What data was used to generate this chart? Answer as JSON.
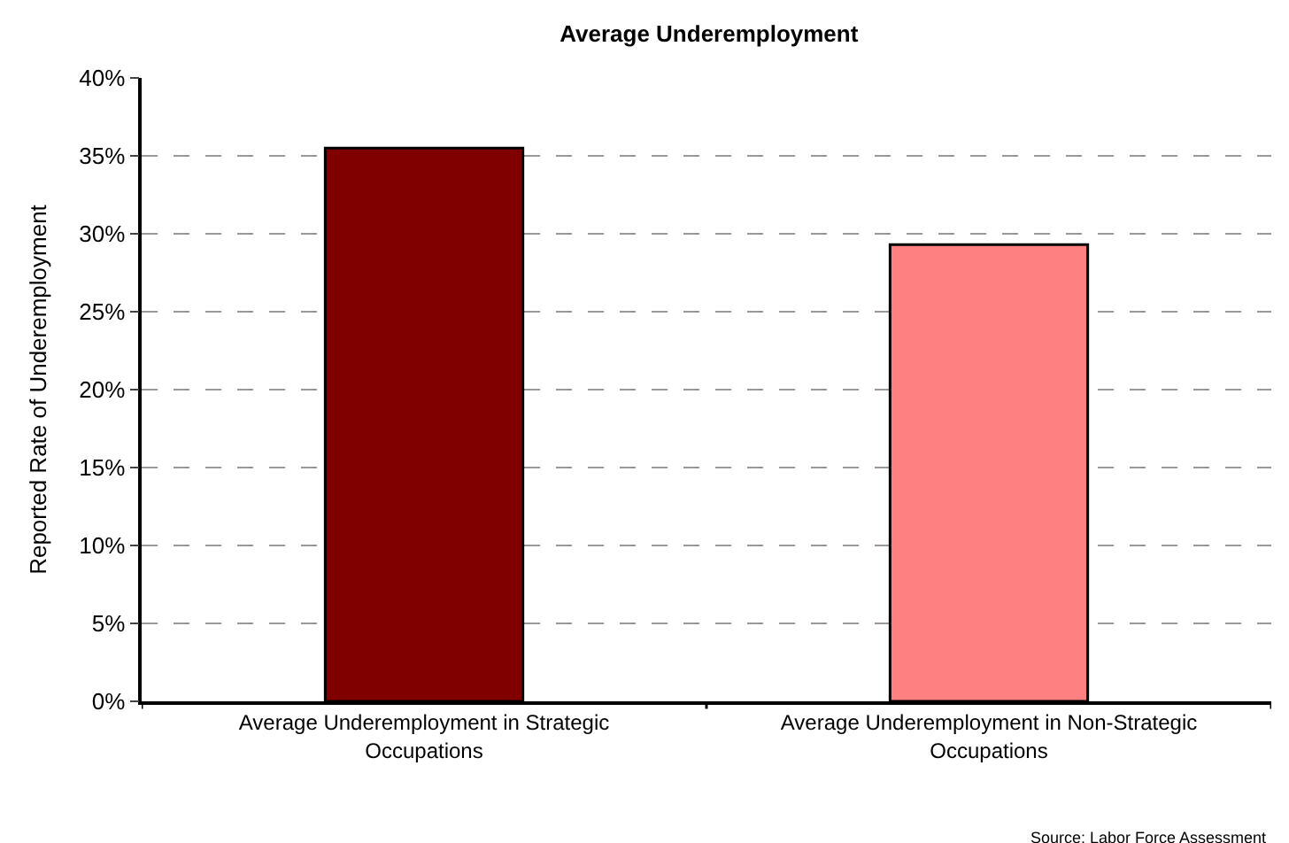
{
  "chart_data": {
    "type": "bar",
    "title": "Average Underemployment",
    "ylabel": "Reported Rate of Underemployment",
    "categories": [
      "Average Underemployment in Strategic Occupations",
      "Average Underemployment in Non-Strategic Occupations"
    ],
    "values": [
      35.5,
      29.3
    ],
    "colors": [
      "#800000",
      "#ff8080"
    ],
    "ylim": [
      0,
      40
    ],
    "yticks": [
      {
        "value": 0,
        "label": "0%"
      },
      {
        "value": 5,
        "label": "5%"
      },
      {
        "value": 10,
        "label": "10%"
      },
      {
        "value": 15,
        "label": "15%"
      },
      {
        "value": 20,
        "label": "20%"
      },
      {
        "value": 25,
        "label": "25%"
      },
      {
        "value": 30,
        "label": "30%"
      },
      {
        "value": 35,
        "label": "35%"
      },
      {
        "value": 40,
        "label": "40%"
      }
    ],
    "grid": "y",
    "annotations": [
      "Source: Labor Force Assessment"
    ]
  }
}
